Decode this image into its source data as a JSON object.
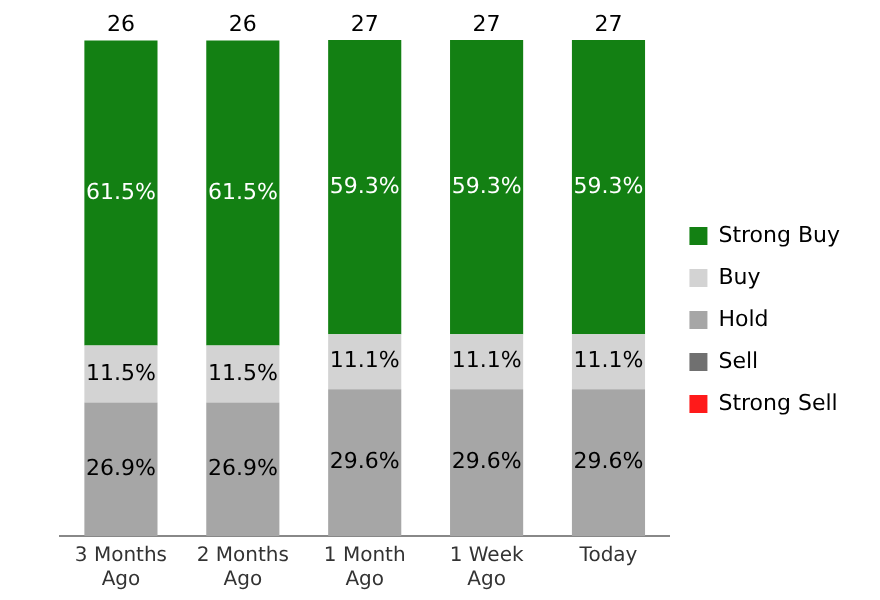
{
  "chart_data": {
    "type": "bar",
    "stacked": true,
    "categories": [
      "3 Months Ago",
      "2 Months Ago",
      "1 Month Ago",
      "1 Week Ago",
      "Today"
    ],
    "series": [
      {
        "name": "Hold",
        "color": "#a6a6a6",
        "values": [
          26.9,
          26.9,
          29.6,
          29.6,
          29.6
        ],
        "value_labels": [
          "26.9%",
          "26.9%",
          "29.6%",
          "29.6%",
          "29.6%"
        ]
      },
      {
        "name": "Buy",
        "color": "#d3d3d3",
        "values": [
          11.5,
          11.5,
          11.1,
          11.1,
          11.1
        ],
        "value_labels": [
          "11.5%",
          "11.5%",
          "11.1%",
          "11.1%",
          "11.1%"
        ]
      },
      {
        "name": "Strong Buy",
        "color": "#138013",
        "values": [
          61.5,
          61.5,
          59.3,
          59.3,
          59.3
        ],
        "value_labels": [
          "61.5%",
          "61.5%",
          "59.3%",
          "59.3%",
          "59.3%"
        ]
      },
      {
        "name": "Sell",
        "color": "#707070",
        "values": [
          null,
          null,
          null,
          null,
          null
        ]
      },
      {
        "name": "Strong Sell",
        "color": "#ff1a1a",
        "values": [
          null,
          null,
          null,
          null,
          null
        ]
      }
    ],
    "annotations": [
      "26",
      "26",
      "27",
      "27",
      "27"
    ],
    "legend": "right",
    "grid": false
  }
}
